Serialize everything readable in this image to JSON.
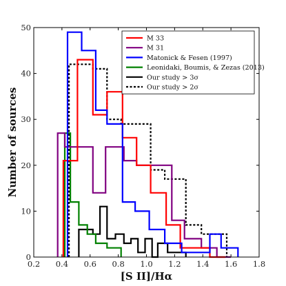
{
  "chart_data": {
    "type": "histogram",
    "xlabel": "[S II]/Hα",
    "ylabel": "Number of sources",
    "xlim": [
      0.2,
      1.8
    ],
    "ylim": [
      0,
      50
    ],
    "xticks": [
      0.2,
      0.4,
      0.6,
      0.8,
      1.0,
      1.2,
      1.4,
      1.6,
      1.8
    ],
    "xtick_labels": [
      "0.2",
      "0.4",
      "0.6",
      "0.8",
      "1.0",
      "1.2",
      "1.4",
      "1.6",
      "1.8"
    ],
    "yticks": [
      0,
      10,
      20,
      30,
      40,
      50
    ],
    "ytick_labels": [
      "0",
      "10",
      "20",
      "30",
      "40",
      "50"
    ],
    "grid": false,
    "legend_position": "top-right",
    "series": [
      {
        "name": "M 33",
        "color": "#ff0000",
        "dash": false,
        "edges": [
          0.41,
          0.51,
          0.62,
          0.72,
          0.83,
          0.93,
          1.03,
          1.14,
          1.24,
          1.35,
          1.45,
          1.56
        ],
        "counts": [
          21,
          43,
          31,
          36,
          26,
          20,
          14,
          7,
          2,
          2,
          0
        ]
      },
      {
        "name": "M 31",
        "color": "#800080",
        "dash": false,
        "edges": [
          0.37,
          0.42,
          0.51,
          0.62,
          0.71,
          0.84,
          0.93,
          1.05,
          1.18,
          1.27,
          1.39,
          1.5,
          1.6
        ],
        "counts": [
          27,
          24,
          24,
          14,
          24,
          21,
          20,
          20,
          8,
          4,
          2,
          0
        ]
      },
      {
        "name": "Matonick & Fesen (1997)",
        "color": "#0000ff",
        "dash": false,
        "edges": [
          0.44,
          0.54,
          0.64,
          0.72,
          0.83,
          0.92,
          1.02,
          1.13,
          1.25,
          1.35,
          1.45,
          1.53,
          1.65
        ],
        "counts": [
          49,
          45,
          32,
          29,
          12,
          10,
          6,
          3,
          1,
          1,
          5,
          2
        ]
      },
      {
        "name": "Leonidaki, Boumis, & Zezas (2013)",
        "color": "#008000",
        "dash": false,
        "edges": [
          0.42,
          0.46,
          0.52,
          0.58,
          0.64,
          0.72,
          0.82
        ],
        "counts": [
          27,
          12,
          7,
          5,
          3,
          2
        ]
      },
      {
        "name": "Our study > 3σ",
        "color": "#000000",
        "dash": false,
        "edges": [
          0.52,
          0.62,
          0.67,
          0.72,
          0.78,
          0.84,
          0.89,
          0.94,
          0.99,
          1.04,
          1.08,
          1.15,
          1.28
        ],
        "counts": [
          6,
          5,
          11,
          4,
          5,
          3,
          4,
          1,
          4,
          0,
          3,
          1
        ]
      },
      {
        "name": "Our study > 2σ",
        "color": "#000000",
        "dash": true,
        "edges": [
          0.45,
          0.62,
          0.72,
          0.82,
          0.93,
          1.03,
          1.13,
          1.28,
          1.39,
          1.48,
          1.57
        ],
        "counts": [
          42,
          41,
          30,
          29,
          29,
          19,
          17,
          7,
          5,
          5
        ]
      }
    ]
  }
}
